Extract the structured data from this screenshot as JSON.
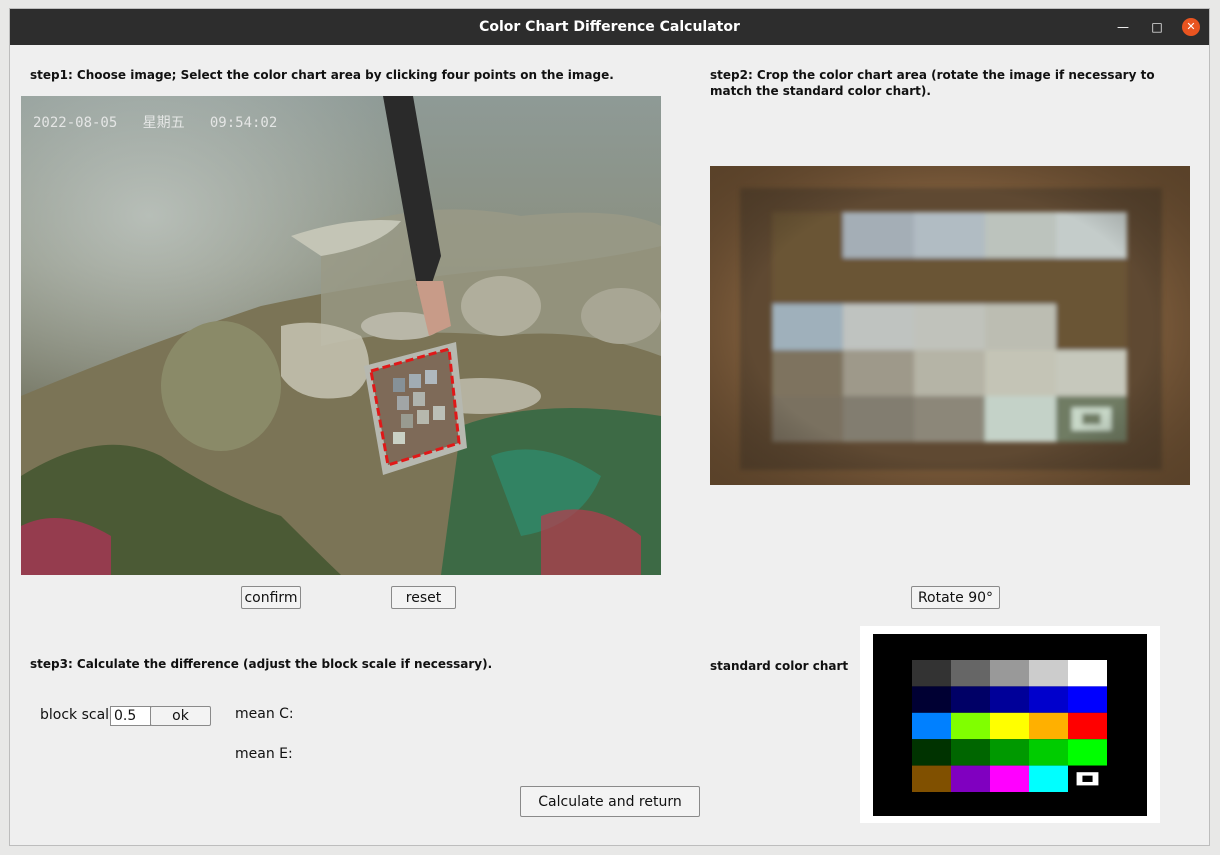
{
  "window": {
    "title": "Color Chart Difference Calculator"
  },
  "step1": {
    "label": "step1: Choose image; Select the color chart area by clicking four points on the image.",
    "timestamp": "2022-08-05   星期五   09:54:02",
    "confirm_label": "confirm",
    "reset_label": "reset"
  },
  "step2": {
    "label_line1": "step2: Crop the color chart area (rotate the image if necessary to",
    "label_line2": "match the standard color chart).",
    "rotate_label": "Rotate 90°"
  },
  "step3": {
    "label": "step3: Calculate the difference (adjust the block scale if necessary).",
    "block_scale_label": "block scal",
    "block_scale_value": "0.5",
    "ok_label": "ok",
    "mean_c_label": "mean C:",
    "mean_e_label": "mean E:",
    "calculate_label": "Calculate and return"
  },
  "standard": {
    "label": "standard color chart",
    "rows": [
      [
        "#333333",
        "#666666",
        "#999999",
        "#cccccc",
        "#ffffff"
      ],
      [
        "#000033",
        "#000066",
        "#000099",
        "#0000cc",
        "#0000ff"
      ],
      [
        "#0080ff",
        "#80ff00",
        "#ffff00",
        "#ffb000",
        "#ff0000"
      ],
      [
        "#003300",
        "#006600",
        "#009900",
        "#00cc00",
        "#00ff00"
      ],
      [
        "#805000",
        "#8000c0",
        "#ff00ff",
        "#00ffff",
        "target"
      ]
    ]
  },
  "crop": {
    "rows": [
      [
        "#6b5434",
        "#a4aeb6",
        "#b1bcc3",
        "#bcc3bd",
        "#c4ccca"
      ],
      [
        "#6b5434",
        "#6b5434",
        "#6b5434",
        "#6b5434",
        "#6b5434"
      ],
      [
        "#9fb0bb",
        "#bfc3c0",
        "#c0c2bb",
        "#bcbdb2",
        "#6b5434"
      ],
      [
        "#7e735f",
        "#9e998a",
        "#b5b4a6",
        "#c4c4b6",
        "#c6c8bc"
      ],
      [
        "#7a7160",
        "#827d70",
        "#8c8779",
        "#c4d2c8",
        "target"
      ]
    ]
  }
}
